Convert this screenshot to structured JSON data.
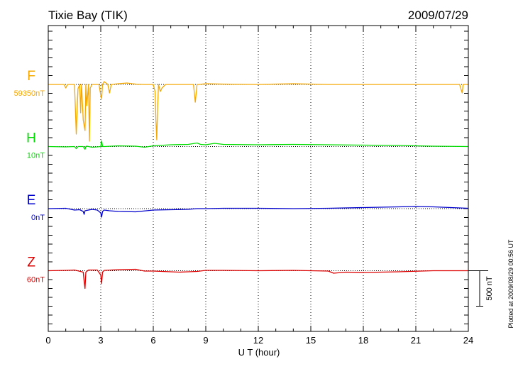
{
  "chart_data": {
    "type": "line",
    "title": "Tixie Bay (TIK)",
    "date": "2009/07/29",
    "xlabel": "U T (hour)",
    "xlim": [
      0,
      24
    ],
    "xticks": [
      "0",
      "3",
      "6",
      "9",
      "12",
      "15",
      "18",
      "21",
      "24"
    ],
    "scale_bar_label": "500 nT",
    "plotted_at": "Plotted at 2009/08/29 00:56 UT",
    "grid_vertical": "dotted",
    "units": "nT",
    "series": [
      {
        "name": "F",
        "baseline_label": "59350nT",
        "color": "#f5a800",
        "offset_nT": 1750,
        "x": [
          0,
          0.5,
          0.9,
          1.0,
          1.1,
          1.5,
          1.6,
          1.7,
          1.8,
          1.85,
          1.9,
          2.0,
          2.1,
          2.15,
          2.2,
          2.3,
          2.35,
          2.4,
          2.5,
          2.7,
          2.9,
          3.0,
          3.05,
          3.1,
          3.2,
          3.4,
          3.5,
          3.6,
          4.0,
          4.5,
          4.8,
          5.0,
          5.5,
          6.0,
          6.1,
          6.15,
          6.2,
          6.25,
          6.3,
          6.4,
          6.5,
          6.7,
          7.0,
          7.5,
          8.0,
          8.3,
          8.4,
          8.5,
          8.6,
          9.0,
          10.0,
          12.0,
          14.0,
          16.0,
          18.0,
          20.0,
          22.0,
          23.0,
          23.5,
          23.6,
          23.65,
          23.7,
          23.8,
          24.0
        ],
        "y": [
          0,
          0,
          0,
          -50,
          0,
          0,
          -700,
          -60,
          0,
          -400,
          0,
          -500,
          -650,
          0,
          -300,
          0,
          -800,
          -50,
          0,
          0,
          0,
          -150,
          -200,
          0,
          40,
          0,
          -120,
          0,
          10,
          20,
          10,
          5,
          0,
          0,
          -100,
          -500,
          -780,
          -300,
          0,
          -100,
          -50,
          0,
          0,
          0,
          0,
          0,
          -250,
          0,
          0,
          10,
          5,
          0,
          10,
          0,
          0,
          0,
          0,
          0,
          0,
          -80,
          -120,
          0,
          0,
          0
        ]
      },
      {
        "name": "H",
        "baseline_label": "10nT",
        "color": "#00dd00",
        "offset_nT": 875,
        "x": [
          0,
          1,
          1.5,
          1.6,
          1.7,
          2.0,
          2.1,
          2.15,
          2.2,
          2.5,
          2.8,
          3.0,
          3.05,
          3.1,
          3.2,
          4.0,
          5.0,
          5.5,
          6.0,
          7.0,
          8.0,
          8.5,
          8.7,
          9.0,
          9.5,
          10.0,
          12.0,
          14.0,
          16.0,
          18.0,
          20.0,
          22.0,
          24.0
        ],
        "y": [
          0,
          -5,
          0,
          -30,
          0,
          0,
          -40,
          0,
          5,
          -10,
          -5,
          0,
          80,
          0,
          0,
          10,
          5,
          -10,
          10,
          25,
          30,
          50,
          30,
          25,
          45,
          30,
          25,
          30,
          25,
          20,
          15,
          5,
          0
        ]
      },
      {
        "name": "E",
        "baseline_label": "0nT",
        "color": "#0000cc",
        "offset_nT": 0,
        "x": [
          0,
          1,
          1.5,
          1.8,
          2.0,
          2.05,
          2.1,
          2.2,
          2.5,
          2.8,
          3.0,
          3.05,
          3.1,
          3.2,
          3.5,
          4.0,
          5.0,
          6.0,
          7.0,
          8.0,
          8.5,
          9.0,
          10.0,
          12.0,
          14.0,
          16.0,
          18.0,
          20.0,
          21.0,
          22.0,
          23.0,
          24.0
        ],
        "y": [
          0,
          5,
          -20,
          -15,
          -40,
          -80,
          -30,
          -25,
          -10,
          -20,
          -60,
          -120,
          -40,
          -20,
          -30,
          -40,
          -45,
          -20,
          -15,
          -10,
          0,
          0,
          5,
          5,
          0,
          5,
          15,
          25,
          30,
          25,
          15,
          5
        ]
      },
      {
        "name": "Z",
        "baseline_label": "60nT",
        "color": "#dd0000",
        "offset_nT": -875,
        "x": [
          0,
          1,
          1.5,
          2.0,
          2.05,
          2.1,
          2.15,
          2.3,
          2.8,
          3.0,
          3.05,
          3.1,
          3.2,
          4.0,
          5.0,
          5.5,
          6.0,
          7.0,
          7.5,
          8.0,
          8.5,
          9.0,
          10.0,
          12.0,
          14.0,
          15.0,
          16.0,
          16.3,
          17.0,
          18.0,
          20.0,
          22.0,
          24.0
        ],
        "y": [
          0,
          5,
          10,
          -20,
          -150,
          -250,
          -20,
          10,
          10,
          -60,
          -180,
          -20,
          5,
          15,
          20,
          -5,
          -5,
          -15,
          -20,
          -15,
          -10,
          5,
          5,
          0,
          5,
          0,
          -5,
          -35,
          -20,
          -25,
          -15,
          0,
          0
        ]
      }
    ]
  }
}
